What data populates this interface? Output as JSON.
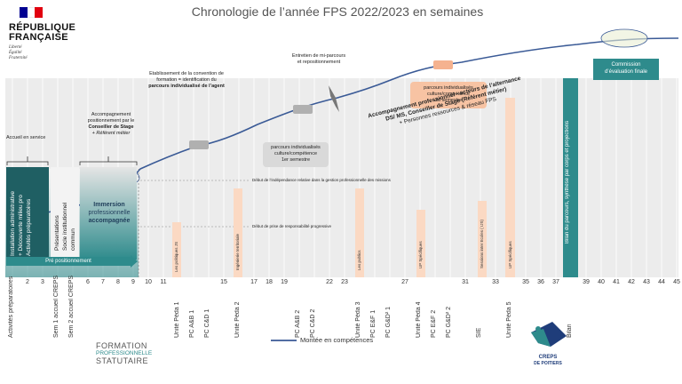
{
  "title": "Chronologie de l’année FPS 2022/2023 en semaines",
  "republique": {
    "line1": "RÉPUBLIQUE",
    "line2": "FRANÇAISE",
    "motto": [
      "Liberté",
      "Égalité",
      "Fraternité"
    ]
  },
  "annotations": {
    "accueil": "Accueil en service",
    "accompagnement_pos": [
      "Accompagnement",
      "positionnement par le"
    ],
    "conseiller": "Conseiller de Stage",
    "referent": "+ Référent métier",
    "etablissement": [
      "Etablissement de la convention de",
      "formation = identification du",
      "parcours individualisé de l’agent"
    ],
    "entretien": [
      "Entretien de mi-parcours",
      "et repositionnement"
    ],
    "parcours1": [
      "parcours individualisés",
      "culture/compétence",
      "1er semestre"
    ],
    "parcours2": [
      "parcours individualisés",
      "culture/compétence",
      "2d semestre"
    ],
    "acc_pro": [
      "Accompagnement professionnel - acteurs de l’alternance",
      "DS/ MS, Conseiller de Stage (Référent métier)",
      "+ Personnes ressources & réseau FPS"
    ],
    "commission": [
      "Commission",
      "d’évaluation finale"
    ],
    "bilan": "Bilan du parcours, synthèse par corps et projections",
    "debut_indep": "Début de l’indépendance relative dans la gestion  professionnelle des missions",
    "debut_prise": "Début de prise de responsabilité progressive",
    "immersion": [
      "Immersion",
      "professionnelle",
      "accompagnée"
    ],
    "col1": [
      "Installation administrative",
      "+ Découverte milieu pro",
      "Activités préparatoires"
    ],
    "col2": [
      "Présentations",
      "Socle institutionnel",
      "commun"
    ],
    "pre_pos": "Pré positionnement",
    "legend": "Montée en compétences"
  },
  "orange_bars": [
    {
      "label": "Les politiques JS"
    },
    {
      "label": "Ingénierie territoriale"
    },
    {
      "label": "Les publics"
    },
    {
      "label": "UP Spécifiques"
    },
    {
      "label": "Sessions inter Ecoles ( IJS)"
    },
    {
      "label": "UP Spécifiques"
    }
  ],
  "axis_labels": [
    "Activités préparatoires",
    "2",
    "3",
    "Sem 1 accueil CREPS",
    "Sem 2 accueil CREPS",
    "6",
    "7",
    "8",
    "9",
    "10",
    "11",
    "Unité Péda 1",
    "PC A&B 1",
    "PC C&D 1",
    "15",
    "Unité Péda 2",
    "17",
    "18",
    "19",
    "PC A&B 2",
    "PC C&D 2",
    "22",
    "23",
    "Unité Péda 3",
    "PC E&F 1",
    "PC G&D² 1",
    "27",
    "Unité Péda 4",
    "PC E&F 2",
    "PC G&D² 2",
    "31",
    "SIE",
    "33",
    "Unité Péda 5",
    "35",
    "36",
    "37",
    "Bilan",
    "39",
    "40",
    "41",
    "42",
    "43",
    "44",
    "45"
  ],
  "logos": {
    "formation": [
      "FORMATION",
      "PROFESSIONNELLE",
      "STATUTAIRE"
    ],
    "creps": [
      "CREPS",
      "DE POITIERS"
    ]
  },
  "colors": {
    "teal": "#2e8b8c",
    "orange": "#fbd9c3",
    "curve": "#3a5a96",
    "navy": "#1f3d7a",
    "red": "#e1000f"
  },
  "chart_data": {
    "type": "line",
    "x_label": "",
    "series": [
      {
        "name": "Montée en compétences",
        "trend": "increasing"
      }
    ]
  }
}
